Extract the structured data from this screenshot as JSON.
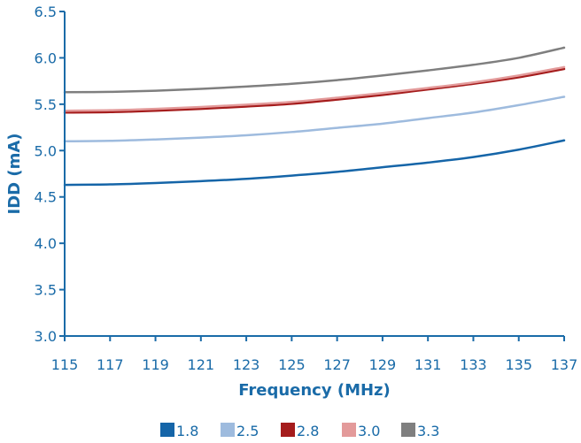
{
  "chart_data": {
    "type": "line",
    "xlabel": "Frequency (MHz)",
    "ylabel": "IDD (mA)",
    "x": [
      115,
      117,
      119,
      121,
      123,
      125,
      127,
      129,
      131,
      133,
      135,
      137
    ],
    "x_ticks": [
      "115",
      "117",
      "119",
      "121",
      "123",
      "125",
      "127",
      "129",
      "131",
      "133",
      "135",
      "137"
    ],
    "y_ticks": [
      "3.0",
      "3.5",
      "4.0",
      "4.5",
      "5.0",
      "5.5",
      "6.0",
      "6.5"
    ],
    "xlim": [
      115,
      137
    ],
    "ylim": [
      3.0,
      6.5
    ],
    "grid": false,
    "legend_position": "bottom",
    "series": [
      {
        "name": "1.8",
        "color": "#1565a8",
        "values": [
          4.63,
          4.635,
          4.65,
          4.67,
          4.695,
          4.73,
          4.77,
          4.82,
          4.87,
          4.93,
          5.01,
          5.11
        ]
      },
      {
        "name": "2.5",
        "color": "#9ebbde",
        "values": [
          5.1,
          5.105,
          5.12,
          5.14,
          5.165,
          5.2,
          5.245,
          5.29,
          5.35,
          5.41,
          5.49,
          5.58
        ]
      },
      {
        "name": "2.8",
        "color": "#a51c1c",
        "values": [
          5.41,
          5.415,
          5.43,
          5.45,
          5.475,
          5.505,
          5.55,
          5.6,
          5.66,
          5.72,
          5.79,
          5.88
        ]
      },
      {
        "name": "3.0",
        "color": "#e39a9a",
        "values": [
          5.43,
          5.435,
          5.45,
          5.47,
          5.495,
          5.525,
          5.57,
          5.62,
          5.675,
          5.735,
          5.81,
          5.9
        ]
      },
      {
        "name": "3.3",
        "color": "#7f7f7f",
        "values": [
          5.63,
          5.633,
          5.645,
          5.665,
          5.69,
          5.72,
          5.76,
          5.81,
          5.865,
          5.925,
          6.0,
          6.11
        ]
      }
    ]
  }
}
